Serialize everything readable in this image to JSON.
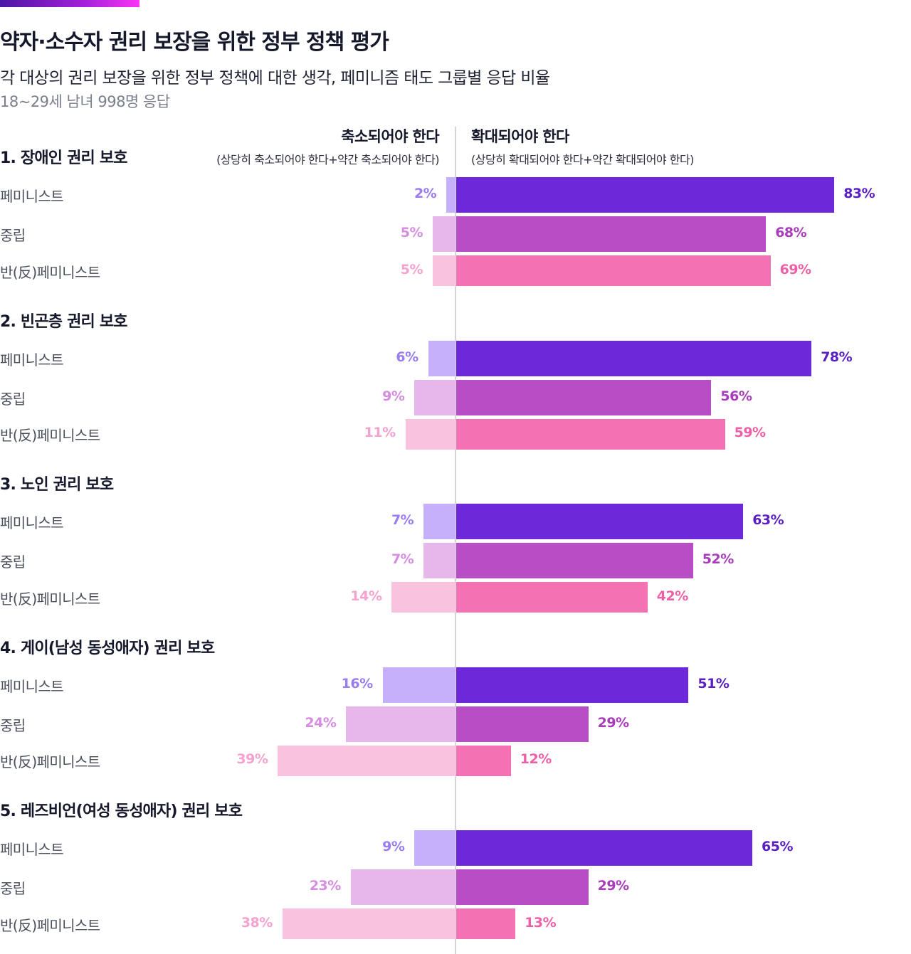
{
  "header": {
    "title": "약자·소수자 권리 보장을 위한 정부 정책 평가",
    "subtitle": "각 대상의 권리 보장을 위한 정부 정책에 대한 생각, 페미니즘 태도 그룹별 응답 비율",
    "note": "18~29세 남녀 998명 응답"
  },
  "columns": {
    "left": {
      "label": "축소되어야 한다",
      "sublabel": "(상당히 축소되어야 한다+약간 축소되어야 한다)"
    },
    "right": {
      "label": "확대되어야 한다",
      "sublabel": "(상당히 확대되어야 한다+약간 확대되어야 한다)"
    }
  },
  "colors": {
    "feminist": {
      "expand": "#6c28d9",
      "shrink": "#c4b0fb",
      "expand_label": "#5a1fc4",
      "shrink_label": "#9a7cf0"
    },
    "neutral": {
      "expand": "#b84dc6",
      "shrink": "#e7b7ec",
      "expand_label": "#a83cbb",
      "shrink_label": "#d68ce0"
    },
    "anti": {
      "expand": "#f472b3",
      "shrink": "#f9c3e0",
      "expand_label": "#ee5fa6",
      "shrink_label": "#f6a2cf"
    }
  },
  "chart_data": {
    "type": "bar",
    "orientation": "horizontal-diverging",
    "title": "약자·소수자 권리 보장을 위한 정부 정책 평가",
    "subtitle": "각 대상의 권리 보장을 위한 정부 정책에 대한 생각, 페미니즘 태도 그룹별 응답 비율",
    "unit": "%",
    "series": [
      {
        "name": "축소되어야 한다",
        "direction": "left"
      },
      {
        "name": "확대되어야 한다",
        "direction": "right"
      }
    ],
    "groups": [
      "페미니스트",
      "중립",
      "반(反)페미니스트"
    ],
    "group_keys": [
      "feminist",
      "neutral",
      "anti"
    ],
    "sections": [
      {
        "title": "1. 장애인 권리 보호",
        "rows": [
          {
            "group": "페미니스트",
            "shrink": 2,
            "expand": 83
          },
          {
            "group": "중립",
            "shrink": 5,
            "expand": 68
          },
          {
            "group": "반(反)페미니스트",
            "shrink": 5,
            "expand": 69
          }
        ]
      },
      {
        "title": "2. 빈곤층 권리 보호",
        "rows": [
          {
            "group": "페미니스트",
            "shrink": 6,
            "expand": 78
          },
          {
            "group": "중립",
            "shrink": 9,
            "expand": 56
          },
          {
            "group": "반(反)페미니스트",
            "shrink": 11,
            "expand": 59
          }
        ]
      },
      {
        "title": "3. 노인 권리 보호",
        "rows": [
          {
            "group": "페미니스트",
            "shrink": 7,
            "expand": 63
          },
          {
            "group": "중립",
            "shrink": 7,
            "expand": 52
          },
          {
            "group": "반(反)페미니스트",
            "shrink": 14,
            "expand": 42
          }
        ]
      },
      {
        "title": "4. 게이(남성 동성애자) 권리 보호",
        "rows": [
          {
            "group": "페미니스트",
            "shrink": 16,
            "expand": 51
          },
          {
            "group": "중립",
            "shrink": 24,
            "expand": 29
          },
          {
            "group": "반(反)페미니스트",
            "shrink": 39,
            "expand": 12
          }
        ]
      },
      {
        "title": "5. 레즈비언(여성 동성애자) 권리 보호",
        "rows": [
          {
            "group": "페미니스트",
            "shrink": 9,
            "expand": 65
          },
          {
            "group": "중립",
            "shrink": 23,
            "expand": 29
          },
          {
            "group": "반(反)페미니스트",
            "shrink": 38,
            "expand": 13
          }
        ]
      }
    ]
  }
}
